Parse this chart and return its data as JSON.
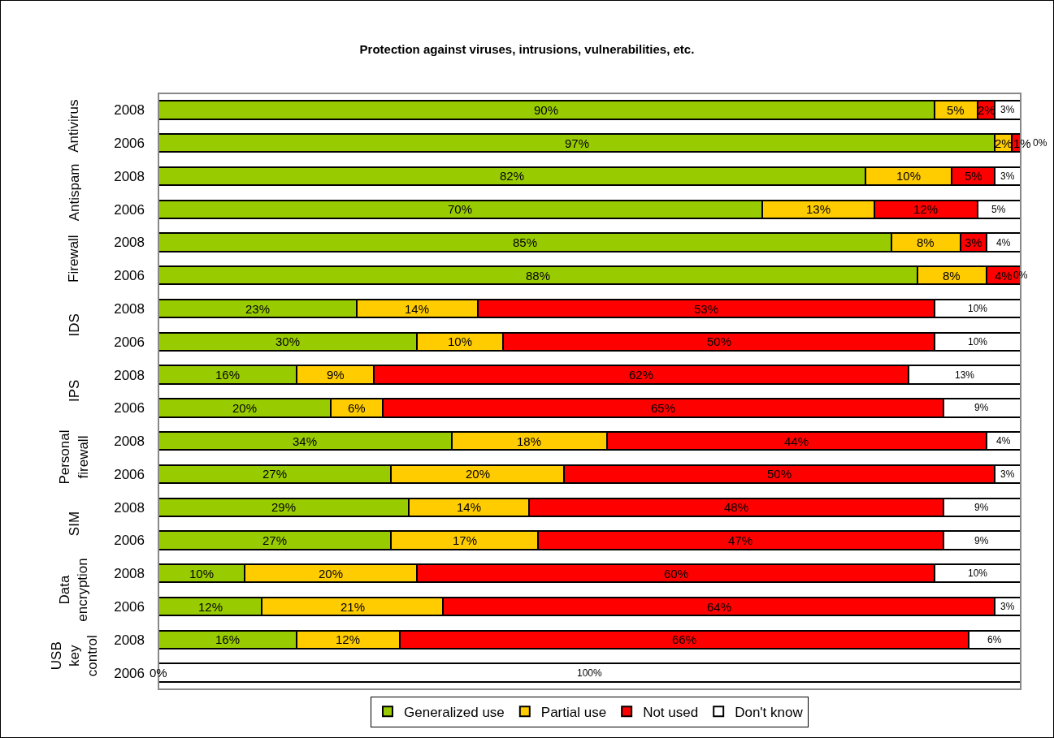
{
  "chart_data": {
    "type": "bar",
    "title": "Protection against viruses, intrusions, vulnerabilities, etc.",
    "orientation": "horizontal",
    "stacked": true,
    "legend": "bottom",
    "grid": false,
    "tick_labels": "y",
    "categories": [
      "2008",
      "2006",
      "2008",
      "2006",
      "2008",
      "2006",
      "2008",
      "2006",
      "2008",
      "2006",
      "2008",
      "2006",
      "2008",
      "2006",
      "2008",
      "2006",
      "2008",
      "2006"
    ],
    "annotations": [
      "Antivirus",
      "Antispam",
      "Firewall",
      "IDS",
      "IPS",
      "Personal\nfirewall",
      "SIM",
      "Data\nencryption",
      "USB\nkey\ncontrol"
    ],
    "series": [
      {
        "name": "Generalized use",
        "color": "#99cc00",
        "values": [
          90,
          97,
          82,
          70,
          85,
          88,
          23,
          30,
          16,
          20,
          34,
          27,
          29,
          27,
          10,
          12,
          16,
          0
        ],
        "value_labels": [
          "90%",
          "97%",
          "82%",
          "70%",
          "85%",
          "88%",
          "23%",
          "30%",
          "16%",
          "20%",
          "34%",
          "27%",
          "29%",
          "27%",
          "10%",
          "12%",
          "16%",
          "0%"
        ]
      },
      {
        "name": "Partial use",
        "color": "#ffcc00",
        "values": [
          5,
          2,
          10,
          13,
          8,
          8,
          14,
          10,
          9,
          6,
          18,
          20,
          14,
          17,
          20,
          21,
          12,
          0
        ],
        "value_labels": [
          "5%",
          "2%",
          "10%",
          "13%",
          "8%",
          "8%",
          "14%",
          "10%",
          "9%",
          "6%",
          "18%",
          "20%",
          "14%",
          "17%",
          "20%",
          "21%",
          "12%",
          null
        ]
      },
      {
        "name": "Not used",
        "color": "#ff0000",
        "values": [
          2,
          1,
          5,
          12,
          3,
          4,
          53,
          50,
          62,
          65,
          44,
          50,
          48,
          47,
          60,
          64,
          66,
          0
        ],
        "value_labels": [
          "2%",
          "1%",
          "5%",
          "12%",
          "3%",
          "4%",
          "53%",
          "50%",
          "62%",
          "65%",
          "44%",
          "50%",
          "48%",
          "47%",
          "60%",
          "64%",
          "66%",
          null
        ]
      },
      {
        "name": "Don't know",
        "color": "#ffffff",
        "values": [
          3,
          0,
          3,
          5,
          4,
          0,
          10,
          10,
          13,
          9,
          4,
          3,
          9,
          9,
          10,
          3,
          6,
          100
        ],
        "value_labels": [
          "3%",
          "0%",
          "3%",
          "5%",
          "4%",
          "0%",
          "10%",
          "10%",
          "13%",
          "9%",
          "4%",
          "3%",
          "9%",
          "9%",
          "10%",
          "3%",
          "6%",
          "100%"
        ]
      }
    ]
  }
}
